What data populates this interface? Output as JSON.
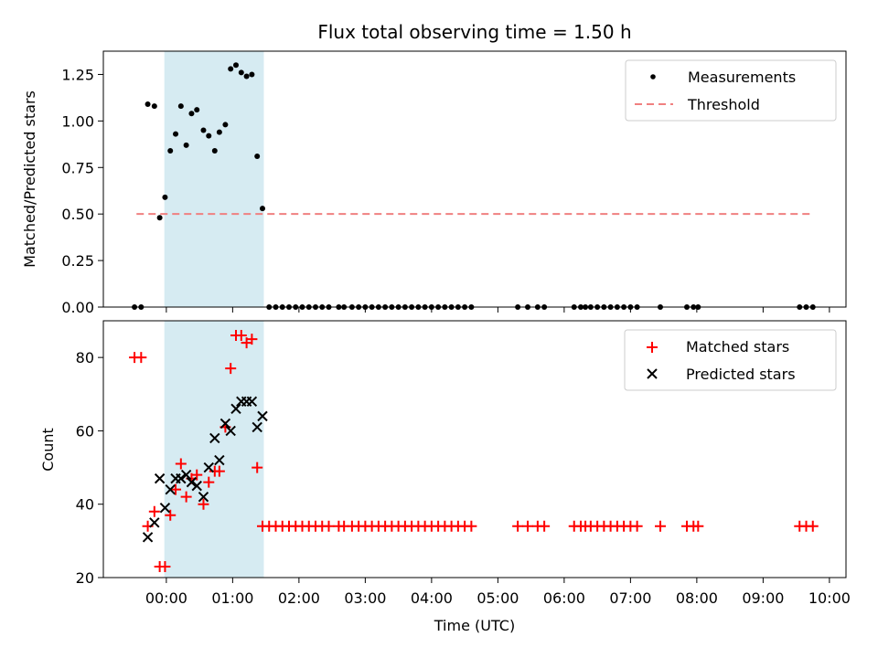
{
  "chart_data": [
    {
      "type": "scatter",
      "title": "Flux total observing time = 1.50 h",
      "xlabel": "",
      "ylabel": "Matched/Predicted stars",
      "xlim": [
        -0.95,
        10.25
      ],
      "ylim": [
        0,
        1.375
      ],
      "xticks": [
        0,
        1,
        2,
        3,
        4,
        5,
        6,
        7,
        8,
        9,
        10
      ],
      "yticks": [
        0,
        0.25,
        0.5,
        0.75,
        1.0,
        1.25
      ],
      "ytick_labels": [
        "0.00",
        "0.25",
        "0.50",
        "0.75",
        "1.00",
        "1.25"
      ],
      "shaded_span": [
        -0.03,
        1.47
      ],
      "threshold": {
        "value": 0.5,
        "x_range": [
          -0.45,
          9.75
        ],
        "color": "#f08080"
      },
      "legend": {
        "position": "top-right",
        "entries": [
          "Measurements",
          "Threshold"
        ]
      },
      "series": [
        {
          "name": "Measurements",
          "color": "#000000",
          "points": [
            [
              -0.48,
              0
            ],
            [
              -0.38,
              0
            ],
            [
              -0.28,
              1.09
            ],
            [
              -0.18,
              1.08
            ],
            [
              -0.1,
              0.48
            ],
            [
              -0.02,
              0.59
            ],
            [
              0.06,
              0.84
            ],
            [
              0.14,
              0.93
            ],
            [
              0.22,
              1.08
            ],
            [
              0.3,
              0.87
            ],
            [
              0.38,
              1.04
            ],
            [
              0.46,
              1.06
            ],
            [
              0.56,
              0.95
            ],
            [
              0.64,
              0.92
            ],
            [
              0.73,
              0.84
            ],
            [
              0.8,
              0.94
            ],
            [
              0.89,
              0.98
            ],
            [
              0.97,
              1.28
            ],
            [
              1.05,
              1.3
            ],
            [
              1.13,
              1.26
            ],
            [
              1.21,
              1.24
            ],
            [
              1.29,
              1.25
            ],
            [
              1.37,
              0.81
            ],
            [
              1.45,
              0.53
            ],
            [
              1.55,
              0
            ],
            [
              1.65,
              0
            ],
            [
              1.75,
              0
            ],
            [
              1.85,
              0
            ],
            [
              1.95,
              0
            ],
            [
              2.05,
              0
            ],
            [
              2.15,
              0
            ],
            [
              2.25,
              0
            ],
            [
              2.35,
              0
            ],
            [
              2.45,
              0
            ],
            [
              2.6,
              0
            ],
            [
              2.68,
              0
            ],
            [
              2.8,
              0
            ],
            [
              2.9,
              0
            ],
            [
              3.0,
              0
            ],
            [
              3.1,
              0
            ],
            [
              3.2,
              0
            ],
            [
              3.3,
              0
            ],
            [
              3.4,
              0
            ],
            [
              3.5,
              0
            ],
            [
              3.6,
              0
            ],
            [
              3.7,
              0
            ],
            [
              3.8,
              0
            ],
            [
              3.9,
              0
            ],
            [
              4.0,
              0
            ],
            [
              4.1,
              0
            ],
            [
              4.2,
              0
            ],
            [
              4.3,
              0
            ],
            [
              4.4,
              0
            ],
            [
              4.5,
              0
            ],
            [
              4.6,
              0
            ],
            [
              5.3,
              0
            ],
            [
              5.45,
              0
            ],
            [
              5.6,
              0
            ],
            [
              5.7,
              0
            ],
            [
              6.15,
              0
            ],
            [
              6.25,
              0
            ],
            [
              6.32,
              0
            ],
            [
              6.4,
              0
            ],
            [
              6.5,
              0
            ],
            [
              6.6,
              0
            ],
            [
              6.7,
              0
            ],
            [
              6.8,
              0
            ],
            [
              6.9,
              0
            ],
            [
              7.0,
              0
            ],
            [
              7.1,
              0
            ],
            [
              7.45,
              0
            ],
            [
              7.85,
              0
            ],
            [
              7.95,
              0
            ],
            [
              8.02,
              0
            ],
            [
              9.55,
              0
            ],
            [
              9.65,
              0
            ],
            [
              9.75,
              0
            ]
          ]
        }
      ]
    },
    {
      "type": "scatter",
      "title": "",
      "xlabel": "Time (UTC)",
      "ylabel": "Count",
      "xlim": [
        -0.95,
        10.25
      ],
      "ylim": [
        20,
        90
      ],
      "xticks": [
        0,
        1,
        2,
        3,
        4,
        5,
        6,
        7,
        8,
        9,
        10
      ],
      "xtick_labels": [
        "00:00",
        "01:00",
        "02:00",
        "03:00",
        "04:00",
        "05:00",
        "06:00",
        "07:00",
        "08:00",
        "09:00",
        "10:00"
      ],
      "yticks": [
        20,
        40,
        60,
        80
      ],
      "ytick_labels": [
        "20",
        "40",
        "60",
        "80"
      ],
      "shaded_span": [
        -0.03,
        1.47
      ],
      "legend": {
        "position": "top-right",
        "entries": [
          "Matched stars",
          "Predicted stars"
        ]
      },
      "series": [
        {
          "name": "Matched stars",
          "marker": "plus",
          "color": "#ff0000",
          "points": [
            [
              -0.48,
              80
            ],
            [
              -0.38,
              80
            ],
            [
              -0.28,
              34
            ],
            [
              -0.18,
              38
            ],
            [
              -0.1,
              23
            ],
            [
              -0.02,
              23
            ],
            [
              0.06,
              37
            ],
            [
              0.14,
              44
            ],
            [
              0.22,
              51
            ],
            [
              0.3,
              42
            ],
            [
              0.38,
              47
            ],
            [
              0.46,
              48
            ],
            [
              0.56,
              40
            ],
            [
              0.64,
              46
            ],
            [
              0.73,
              49
            ],
            [
              0.8,
              49
            ],
            [
              0.89,
              61
            ],
            [
              0.97,
              77
            ],
            [
              1.05,
              86
            ],
            [
              1.13,
              86
            ],
            [
              1.21,
              84
            ],
            [
              1.29,
              85
            ],
            [
              1.37,
              50
            ],
            [
              1.45,
              34
            ],
            [
              1.55,
              34
            ],
            [
              1.65,
              34
            ],
            [
              1.75,
              34
            ],
            [
              1.85,
              34
            ],
            [
              1.95,
              34
            ],
            [
              2.05,
              34
            ],
            [
              2.15,
              34
            ],
            [
              2.25,
              34
            ],
            [
              2.35,
              34
            ],
            [
              2.45,
              34
            ],
            [
              2.6,
              34
            ],
            [
              2.68,
              34
            ],
            [
              2.8,
              34
            ],
            [
              2.9,
              34
            ],
            [
              3.0,
              34
            ],
            [
              3.1,
              34
            ],
            [
              3.2,
              34
            ],
            [
              3.3,
              34
            ],
            [
              3.4,
              34
            ],
            [
              3.5,
              34
            ],
            [
              3.6,
              34
            ],
            [
              3.7,
              34
            ],
            [
              3.8,
              34
            ],
            [
              3.9,
              34
            ],
            [
              4.0,
              34
            ],
            [
              4.1,
              34
            ],
            [
              4.2,
              34
            ],
            [
              4.3,
              34
            ],
            [
              4.4,
              34
            ],
            [
              4.5,
              34
            ],
            [
              4.6,
              34
            ],
            [
              5.3,
              34
            ],
            [
              5.45,
              34
            ],
            [
              5.6,
              34
            ],
            [
              5.7,
              34
            ],
            [
              6.15,
              34
            ],
            [
              6.25,
              34
            ],
            [
              6.32,
              34
            ],
            [
              6.4,
              34
            ],
            [
              6.5,
              34
            ],
            [
              6.6,
              34
            ],
            [
              6.7,
              34
            ],
            [
              6.8,
              34
            ],
            [
              6.9,
              34
            ],
            [
              7.0,
              34
            ],
            [
              7.1,
              34
            ],
            [
              7.45,
              34
            ],
            [
              7.85,
              34
            ],
            [
              7.95,
              34
            ],
            [
              8.02,
              34
            ],
            [
              9.55,
              34
            ],
            [
              9.65,
              34
            ],
            [
              9.75,
              34
            ]
          ]
        },
        {
          "name": "Predicted stars",
          "marker": "x",
          "color": "#000000",
          "points": [
            [
              -0.28,
              31
            ],
            [
              -0.18,
              35
            ],
            [
              -0.1,
              47
            ],
            [
              -0.02,
              39
            ],
            [
              0.06,
              44
            ],
            [
              0.14,
              47
            ],
            [
              0.22,
              47
            ],
            [
              0.3,
              48
            ],
            [
              0.38,
              46
            ],
            [
              0.46,
              45
            ],
            [
              0.56,
              42
            ],
            [
              0.64,
              50
            ],
            [
              0.73,
              58
            ],
            [
              0.8,
              52
            ],
            [
              0.89,
              62
            ],
            [
              0.97,
              60
            ],
            [
              1.05,
              66
            ],
            [
              1.13,
              68
            ],
            [
              1.21,
              68
            ],
            [
              1.29,
              68
            ],
            [
              1.37,
              61
            ],
            [
              1.45,
              64
            ]
          ]
        }
      ]
    }
  ]
}
